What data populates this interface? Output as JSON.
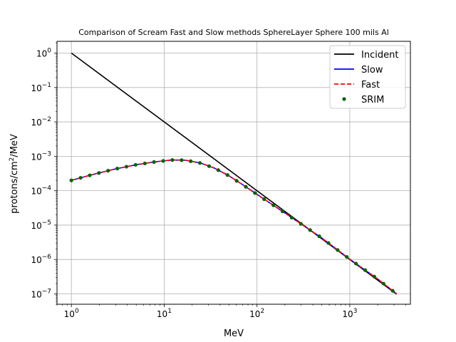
{
  "chart_data": {
    "type": "line",
    "title": "Comparison of Scream Fast and Slow methods SphereLayer Sphere 100 mils Al",
    "xlabel": "MeV",
    "ylabel_main": "protons/cm",
    "ylabel_sup": "2",
    "ylabel_tail": "/MeV",
    "xscale": "log",
    "yscale": "log",
    "xlim": [
      0.7,
      4500
    ],
    "ylim": [
      5e-08,
      2.2
    ],
    "grid": true,
    "legend_position": "top-right",
    "x_ticks": [
      {
        "value": 1,
        "base": "10",
        "exp": "0"
      },
      {
        "value": 10,
        "base": "10",
        "exp": "1"
      },
      {
        "value": 100,
        "base": "10",
        "exp": "2"
      },
      {
        "value": 1000,
        "base": "10",
        "exp": "3"
      }
    ],
    "y_ticks": [
      {
        "value": 1,
        "base": "10",
        "exp": "0"
      },
      {
        "value": 0.1,
        "base": "10",
        "exp": "−1"
      },
      {
        "value": 0.01,
        "base": "10",
        "exp": "−2"
      },
      {
        "value": 0.001,
        "base": "10",
        "exp": "−3"
      },
      {
        "value": 0.0001,
        "base": "10",
        "exp": "−4"
      },
      {
        "value": 1e-05,
        "base": "10",
        "exp": "−5"
      },
      {
        "value": 1e-06,
        "base": "10",
        "exp": "−6"
      },
      {
        "value": 1e-07,
        "base": "10",
        "exp": "−7"
      }
    ],
    "series": [
      {
        "name": "Incident",
        "color": "#000000",
        "style": "solid",
        "x": [
          1,
          3200
        ],
        "y": [
          1,
          9.77e-08
        ]
      },
      {
        "name": "Slow",
        "color": "#0000ff",
        "style": "solid",
        "x": [
          1,
          1.5,
          2,
          3,
          5,
          8,
          12,
          17,
          25,
          35,
          50,
          70,
          100,
          200,
          500,
          1000,
          2000,
          3200
        ],
        "y": [
          0.0002,
          0.00027,
          0.00033,
          0.00043,
          0.00057,
          0.00069,
          0.00078,
          0.00077,
          0.00063,
          0.00045,
          0.00027,
          0.00015,
          7.8e-05,
          2.25e-05,
          4.2e-06,
          1.02e-06,
          2.7e-07,
          1e-07
        ]
      },
      {
        "name": "Fast",
        "color": "#ff0000",
        "style": "dashed",
        "x": [
          1,
          1.5,
          2,
          3,
          5,
          8,
          12,
          17,
          25,
          35,
          50,
          70,
          100,
          200,
          500,
          1000,
          2000,
          3200
        ],
        "y": [
          0.0002,
          0.00027,
          0.00033,
          0.00043,
          0.00057,
          0.00069,
          0.00078,
          0.00077,
          0.00063,
          0.00045,
          0.00027,
          0.00015,
          7.8e-05,
          2.25e-05,
          4.2e-06,
          1.02e-06,
          2.7e-07,
          1e-07
        ]
      },
      {
        "name": "SRIM",
        "color": "#006400",
        "style": "points",
        "x": [],
        "y": []
      }
    ],
    "srim_x_range": [
      1,
      2900
    ],
    "srim_point_count": 36
  }
}
